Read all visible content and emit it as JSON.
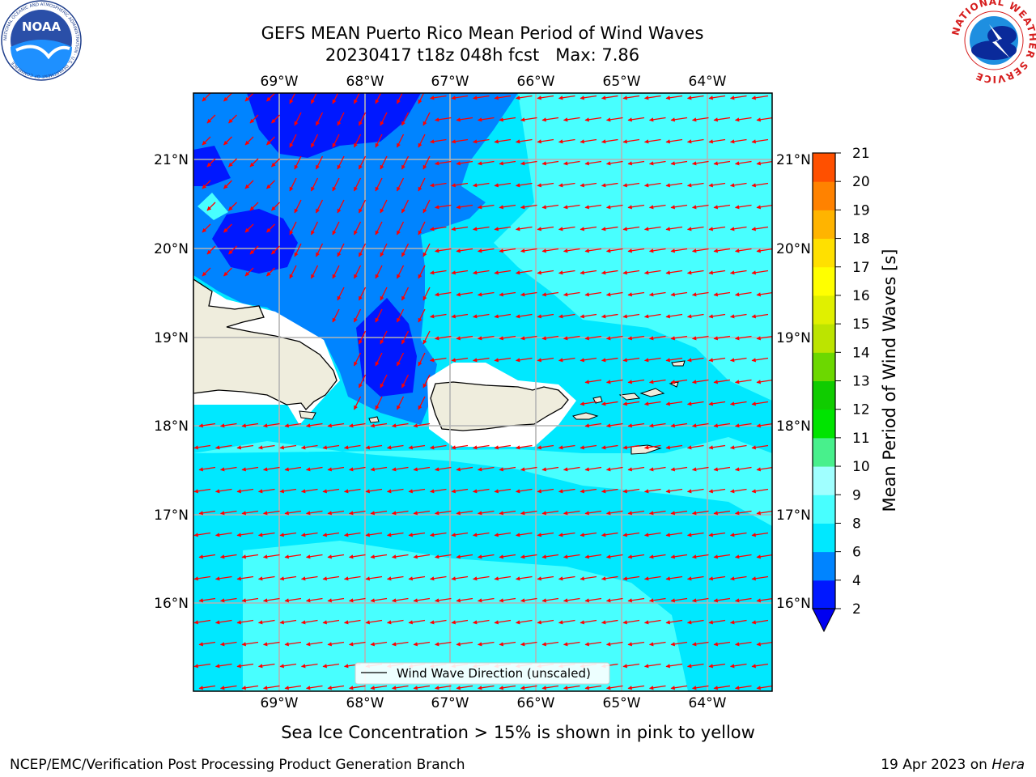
{
  "title": {
    "line1": "GEFS MEAN Puerto Rico Mean Period of Wind Waves",
    "line2": "20230417 t18z 048h fcst   Max: 7.86"
  },
  "logos": {
    "noaa_text": "NOAA",
    "noaa_ring_text": "NATIONAL OCEANIC AND ATMOSPHERIC ADMINISTRATION · U.S. DEPARTMENT OF COMMERCE",
    "nws_ring_text": "NATIONAL WEATHER SERVICE"
  },
  "map": {
    "lon_ticks": [
      "69°W",
      "68°W",
      "67°W",
      "66°W",
      "65°W",
      "64°W"
    ],
    "lat_ticks": [
      "21°N",
      "20°N",
      "19°N",
      "18°N",
      "17°N",
      "16°N"
    ],
    "legend_label": "Wind Wave Direction (unscaled)"
  },
  "colorbar": {
    "label": "Mean Period of Wind Waves [s]",
    "ticks": [
      "2",
      "4",
      "6",
      "8",
      "9",
      "10",
      "11",
      "12",
      "13",
      "14",
      "15",
      "16",
      "17",
      "18",
      "19",
      "20",
      "21"
    ],
    "colors": [
      "#0018ff",
      "#0084ff",
      "#00e8ff",
      "#48ffff",
      "#a0ffff",
      "#48f08c",
      "#00e400",
      "#10cc00",
      "#6cd800",
      "#bce400",
      "#e0f000",
      "#ffff00",
      "#ffe000",
      "#ffb400",
      "#ff8200",
      "#ff5000",
      "#ff2000",
      "#ff0000"
    ],
    "under_color": "#0000f0"
  },
  "subtitle": "Sea Ice Concentration > 15% is shown in pink to yellow",
  "footer": {
    "left": "NCEP/EMC/Verification Post Processing Product Generation Branch",
    "right_date": "19 Apr 2023 on ",
    "right_host": "Hera"
  }
}
